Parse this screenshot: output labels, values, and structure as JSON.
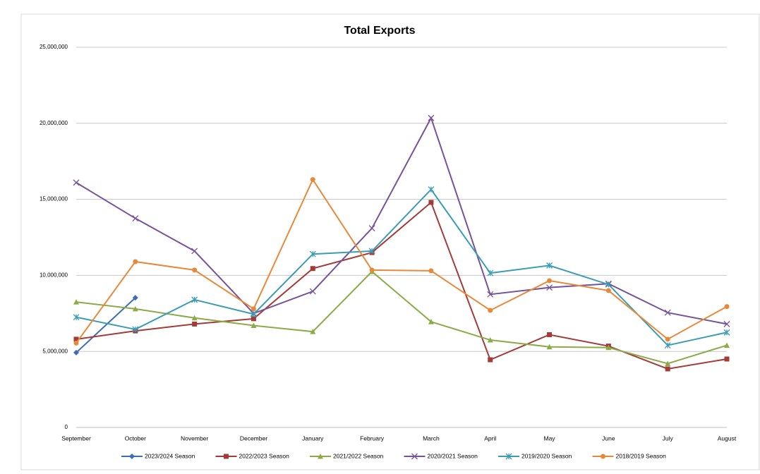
{
  "chart_data": {
    "type": "line",
    "title": "Total Exports",
    "categories": [
      "September",
      "October",
      "November",
      "December",
      "January",
      "February",
      "March",
      "April",
      "May",
      "June",
      "July",
      "August"
    ],
    "ylim": [
      0,
      25000000
    ],
    "yticks": [
      0,
      {
        "value": 5000000,
        "label": "5,000,000"
      },
      {
        "value": 10000000,
        "label": "10,000,000"
      },
      {
        "value": 15000000,
        "label": "15,000,000"
      },
      {
        "value": 20000000,
        "label": "20,000,000"
      },
      {
        "value": 25000000,
        "label": "25,000,000"
      }
    ],
    "grid": true,
    "legend": "bottom",
    "series": [
      {
        "name": "2023/2024 Season",
        "color": "#3f6db4",
        "marker": "diamond",
        "values": [
          4920000,
          8530000,
          null,
          null,
          null,
          null,
          null,
          null,
          null,
          null,
          null,
          null
        ]
      },
      {
        "name": "2022/2023 Season",
        "color": "#a33b38",
        "marker": "square",
        "values": [
          5800000,
          6350000,
          6800000,
          7150000,
          10450000,
          11500000,
          14800000,
          4450000,
          6100000,
          5350000,
          3850000,
          4500000
        ]
      },
      {
        "name": "2021/2022 Season",
        "color": "#8bab47",
        "marker": "triangle",
        "values": [
          8250000,
          7800000,
          7200000,
          6700000,
          6300000,
          10250000,
          6950000,
          5750000,
          5300000,
          5250000,
          4200000,
          5400000
        ]
      },
      {
        "name": "2020/2021 Season",
        "color": "#76529a",
        "marker": "x",
        "values": [
          16100000,
          13750000,
          11600000,
          7500000,
          8950000,
          13100000,
          20350000,
          8750000,
          9200000,
          9450000,
          7550000,
          6800000
        ]
      },
      {
        "name": "2019/2020 Season",
        "color": "#3a9db5",
        "marker": "star",
        "values": [
          7250000,
          6450000,
          8400000,
          7450000,
          11400000,
          11600000,
          15650000,
          10150000,
          10650000,
          9400000,
          5400000,
          6250000
        ]
      },
      {
        "name": "2018/2019 Season",
        "color": "#e8893a",
        "marker": "circle",
        "values": [
          5550000,
          10900000,
          10350000,
          7800000,
          16300000,
          10350000,
          10300000,
          7700000,
          9650000,
          9000000,
          5800000,
          7950000
        ]
      }
    ]
  }
}
